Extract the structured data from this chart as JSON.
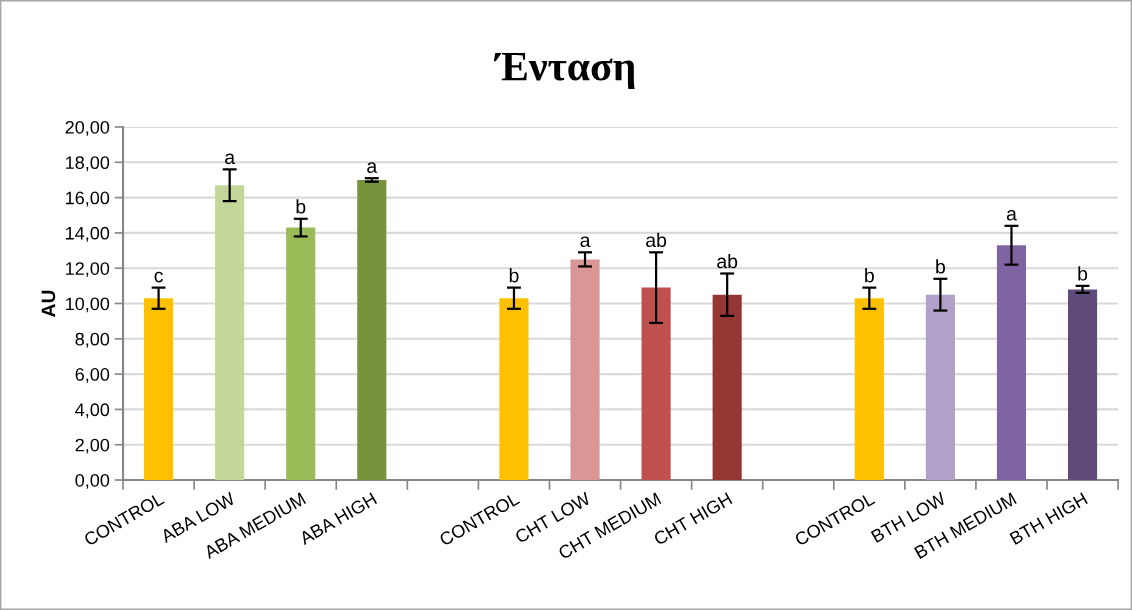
{
  "chart_data": {
    "type": "bar",
    "title": "Ένταση",
    "ylabel": "AU",
    "categories": [
      "CONTROL",
      "ABA LOW",
      "ABA MEDIUM",
      "ABA HIGH",
      null,
      "CONTROL",
      "CHT LOW",
      "CHT MEDIUM",
      "CHT HIGH",
      null,
      "CONTROL",
      "BTH LOW",
      "BTH MEDIUM",
      "BTH HIGH"
    ],
    "values": [
      10.3,
      16.7,
      14.3,
      17.0,
      null,
      10.3,
      12.5,
      10.9,
      10.5,
      null,
      10.3,
      10.5,
      13.3,
      10.8
    ],
    "errors": [
      0.6,
      0.9,
      0.5,
      0.1,
      null,
      0.6,
      0.4,
      2.0,
      1.2,
      null,
      0.6,
      0.9,
      1.1,
      0.2
    ],
    "colors": [
      "#ffc000",
      "#c4d79b",
      "#9bbb59",
      "#77933c",
      null,
      "#ffc000",
      "#da9694",
      "#c0504d",
      "#953735",
      null,
      "#ffc000",
      "#b1a0c7",
      "#8064a2",
      "#604a7b"
    ],
    "value_labels": [
      "c",
      "a",
      "b",
      "a",
      null,
      "b",
      "a",
      "ab",
      "ab",
      null,
      "b",
      "b",
      "a",
      "b"
    ],
    "ylim": [
      0,
      20
    ],
    "yticks": [
      {
        "value": 0,
        "label": "0,00"
      },
      {
        "value": 2,
        "label": "2,00"
      },
      {
        "value": 4,
        "label": "4,00"
      },
      {
        "value": 6,
        "label": "6,00"
      },
      {
        "value": 8,
        "label": "8,00"
      },
      {
        "value": 10,
        "label": "10,00"
      },
      {
        "value": 12,
        "label": "12,00"
      },
      {
        "value": 14,
        "label": "14,00"
      },
      {
        "value": 16,
        "label": "16,00"
      },
      {
        "value": 18,
        "label": "18,00"
      },
      {
        "value": 20,
        "label": "20,00"
      }
    ],
    "grid": "y"
  }
}
